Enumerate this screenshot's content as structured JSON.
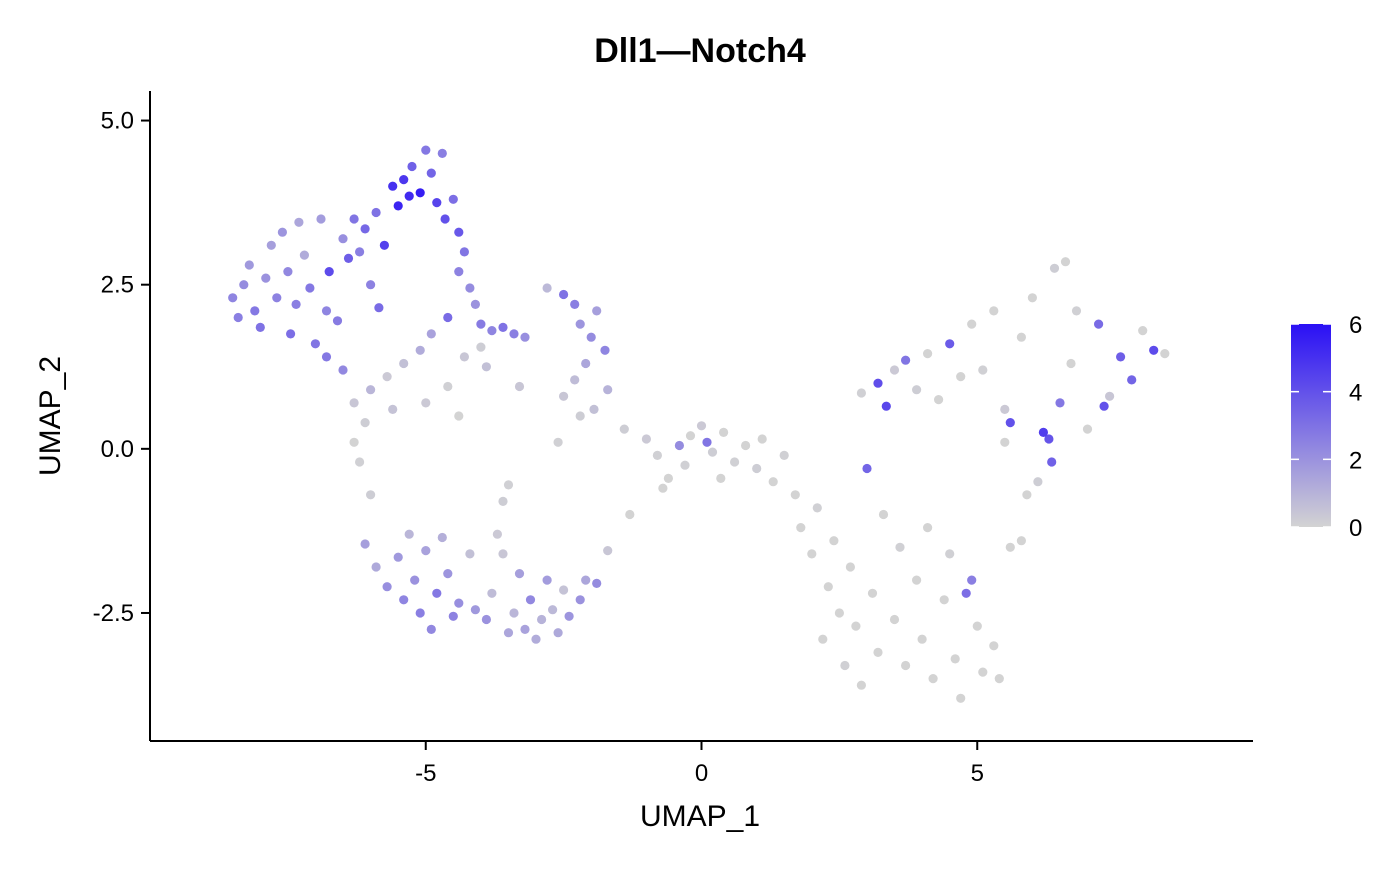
{
  "chart_data": {
    "type": "scatter",
    "title": "Dll1—Notch4",
    "xlabel": "UMAP_1",
    "ylabel": "UMAP_2",
    "xlim": [
      -10.0,
      10.0
    ],
    "ylim": [
      -4.45,
      5.45
    ],
    "x_ticks": [
      -5,
      0,
      5
    ],
    "x_tick_labels": [
      "-5",
      "0",
      "5"
    ],
    "y_ticks": [
      -2.5,
      0.0,
      2.5,
      5.0
    ],
    "y_tick_labels": [
      "-2.5",
      "0.0",
      "2.5",
      "5.0"
    ],
    "grid": false,
    "legend": {
      "position": "right",
      "type": "colorbar",
      "range": [
        0,
        6
      ],
      "ticks": [
        0,
        2,
        4,
        6
      ],
      "tick_labels": [
        "0",
        "2",
        "4",
        "6"
      ],
      "colors": {
        "low": "#d3d3d3",
        "high": "#2a10f5"
      }
    },
    "colors": {
      "axis": "#000000"
    },
    "points": [
      {
        "x": -8.5,
        "y": 2.3,
        "v": 2.4
      },
      {
        "x": -8.4,
        "y": 2.0,
        "v": 2.6
      },
      {
        "x": -8.3,
        "y": 2.5,
        "v": 2.2
      },
      {
        "x": -8.2,
        "y": 2.8,
        "v": 1.8
      },
      {
        "x": -8.1,
        "y": 2.1,
        "v": 2.8
      },
      {
        "x": -8.0,
        "y": 1.85,
        "v": 3.0
      },
      {
        "x": -7.9,
        "y": 2.6,
        "v": 2.0
      },
      {
        "x": -7.8,
        "y": 3.1,
        "v": 1.6
      },
      {
        "x": -7.7,
        "y": 2.3,
        "v": 2.5
      },
      {
        "x": -7.6,
        "y": 3.3,
        "v": 1.9
      },
      {
        "x": -7.5,
        "y": 2.7,
        "v": 2.3
      },
      {
        "x": -7.45,
        "y": 1.75,
        "v": 3.1
      },
      {
        "x": -7.35,
        "y": 2.2,
        "v": 2.6
      },
      {
        "x": -7.3,
        "y": 3.45,
        "v": 1.4
      },
      {
        "x": -7.2,
        "y": 2.95,
        "v": 1.2
      },
      {
        "x": -7.1,
        "y": 2.45,
        "v": 2.8
      },
      {
        "x": -7.0,
        "y": 1.6,
        "v": 2.9
      },
      {
        "x": -6.9,
        "y": 3.5,
        "v": 1.7
      },
      {
        "x": -6.8,
        "y": 2.1,
        "v": 2.4
      },
      {
        "x": -6.75,
        "y": 2.7,
        "v": 4.2
      },
      {
        "x": -6.6,
        "y": 1.95,
        "v": 2.7
      },
      {
        "x": -6.5,
        "y": 3.2,
        "v": 2.1
      },
      {
        "x": -6.4,
        "y": 2.9,
        "v": 3.6
      },
      {
        "x": -6.3,
        "y": 3.5,
        "v": 2.9
      },
      {
        "x": -6.2,
        "y": 3.0,
        "v": 2.6
      },
      {
        "x": -6.1,
        "y": 3.35,
        "v": 3.3
      },
      {
        "x": -6.0,
        "y": 2.5,
        "v": 2.5
      },
      {
        "x": -5.9,
        "y": 3.6,
        "v": 3.0
      },
      {
        "x": -5.85,
        "y": 2.15,
        "v": 3.2
      },
      {
        "x": -5.75,
        "y": 3.1,
        "v": 4.5
      },
      {
        "x": -5.6,
        "y": 4.0,
        "v": 5.0
      },
      {
        "x": -5.5,
        "y": 3.7,
        "v": 5.4
      },
      {
        "x": -5.4,
        "y": 4.1,
        "v": 4.8
      },
      {
        "x": -5.3,
        "y": 3.85,
        "v": 5.2
      },
      {
        "x": -5.25,
        "y": 4.3,
        "v": 3.5
      },
      {
        "x": -5.1,
        "y": 3.9,
        "v": 5.6
      },
      {
        "x": -5.0,
        "y": 4.55,
        "v": 2.8
      },
      {
        "x": -4.9,
        "y": 4.2,
        "v": 3.4
      },
      {
        "x": -4.8,
        "y": 3.75,
        "v": 4.4
      },
      {
        "x": -4.7,
        "y": 4.5,
        "v": 2.6
      },
      {
        "x": -4.65,
        "y": 3.5,
        "v": 4.0
      },
      {
        "x": -4.5,
        "y": 3.8,
        "v": 3.1
      },
      {
        "x": -4.4,
        "y": 3.3,
        "v": 3.8
      },
      {
        "x": -4.3,
        "y": 3.0,
        "v": 2.9
      },
      {
        "x": -4.4,
        "y": 2.7,
        "v": 2.5
      },
      {
        "x": -4.2,
        "y": 2.45,
        "v": 2.2
      },
      {
        "x": -4.1,
        "y": 2.2,
        "v": 2.0
      },
      {
        "x": -4.0,
        "y": 1.9,
        "v": 2.7
      },
      {
        "x": -3.8,
        "y": 1.8,
        "v": 2.4
      },
      {
        "x": -3.6,
        "y": 1.85,
        "v": 3.0
      },
      {
        "x": -3.4,
        "y": 1.75,
        "v": 2.6
      },
      {
        "x": -3.2,
        "y": 1.7,
        "v": 2.1
      },
      {
        "x": -4.6,
        "y": 2.0,
        "v": 3.2
      },
      {
        "x": -4.9,
        "y": 1.75,
        "v": 1.5
      },
      {
        "x": -5.1,
        "y": 1.5,
        "v": 1.2
      },
      {
        "x": -5.4,
        "y": 1.3,
        "v": 0.6
      },
      {
        "x": -5.7,
        "y": 1.1,
        "v": 0.3
      },
      {
        "x": -6.0,
        "y": 0.9,
        "v": 0.9
      },
      {
        "x": -6.3,
        "y": 0.7,
        "v": 0.4
      },
      {
        "x": -6.5,
        "y": 1.2,
        "v": 2.3
      },
      {
        "x": -6.8,
        "y": 1.4,
        "v": 2.8
      },
      {
        "x": -6.1,
        "y": 0.4,
        "v": 0.2
      },
      {
        "x": -5.6,
        "y": 0.6,
        "v": 0.5
      },
      {
        "x": -5.0,
        "y": 0.7,
        "v": 0.3
      },
      {
        "x": -4.6,
        "y": 0.95,
        "v": 0.1
      },
      {
        "x": -4.3,
        "y": 1.4,
        "v": 0.4
      },
      {
        "x": -4.0,
        "y": 1.55,
        "v": 0.2
      },
      {
        "x": -3.9,
        "y": 1.25,
        "v": 0.6
      },
      {
        "x": -4.4,
        "y": 0.5,
        "v": 0.0
      },
      {
        "x": -6.3,
        "y": 0.1,
        "v": 0.0
      },
      {
        "x": -6.2,
        "y": -0.2,
        "v": 0.1
      },
      {
        "x": -6.0,
        "y": -0.7,
        "v": 0.2
      },
      {
        "x": -3.3,
        "y": 0.95,
        "v": 0.4
      },
      {
        "x": -2.8,
        "y": 2.45,
        "v": 0.8
      },
      {
        "x": -2.5,
        "y": 2.35,
        "v": 3.0
      },
      {
        "x": -2.3,
        "y": 2.2,
        "v": 2.6
      },
      {
        "x": -2.2,
        "y": 1.9,
        "v": 1.9
      },
      {
        "x": -2.0,
        "y": 1.7,
        "v": 2.2
      },
      {
        "x": -1.9,
        "y": 2.1,
        "v": 1.6
      },
      {
        "x": -1.75,
        "y": 1.5,
        "v": 2.4
      },
      {
        "x": -2.1,
        "y": 1.3,
        "v": 1.4
      },
      {
        "x": -2.3,
        "y": 1.05,
        "v": 0.7
      },
      {
        "x": -2.5,
        "y": 0.8,
        "v": 0.4
      },
      {
        "x": -2.2,
        "y": 0.5,
        "v": 0.2
      },
      {
        "x": -1.95,
        "y": 0.6,
        "v": 0.6
      },
      {
        "x": -1.7,
        "y": 0.9,
        "v": 1.0
      },
      {
        "x": -2.6,
        "y": 0.1,
        "v": 0.1
      },
      {
        "x": -1.4,
        "y": 0.3,
        "v": 0.2
      },
      {
        "x": -1.0,
        "y": 0.15,
        "v": 0.3
      },
      {
        "x": -0.8,
        "y": -0.1,
        "v": 0.1
      },
      {
        "x": -0.6,
        "y": -0.45,
        "v": 0.0
      },
      {
        "x": -0.4,
        "y": 0.05,
        "v": 2.2
      },
      {
        "x": -0.2,
        "y": 0.2,
        "v": 0.0
      },
      {
        "x": 0.0,
        "y": 0.35,
        "v": 0.3
      },
      {
        "x": 0.1,
        "y": 0.1,
        "v": 2.9
      },
      {
        "x": 0.2,
        "y": -0.05,
        "v": 0.2
      },
      {
        "x": 0.4,
        "y": 0.25,
        "v": 0.0
      },
      {
        "x": 0.6,
        "y": -0.2,
        "v": 0.1
      },
      {
        "x": 0.8,
        "y": 0.05,
        "v": 0.0
      },
      {
        "x": 1.0,
        "y": -0.3,
        "v": 0.2
      },
      {
        "x": 1.1,
        "y": 0.15,
        "v": 0.0
      },
      {
        "x": 1.3,
        "y": -0.5,
        "v": 0.0
      },
      {
        "x": 1.5,
        "y": -0.1,
        "v": 0.1
      },
      {
        "x": 1.7,
        "y": -0.7,
        "v": 0.0
      },
      {
        "x": -1.3,
        "y": -1.0,
        "v": 0.0
      },
      {
        "x": -0.7,
        "y": -0.6,
        "v": 0.0
      },
      {
        "x": -0.3,
        "y": -0.25,
        "v": 0.1
      },
      {
        "x": 0.35,
        "y": -0.45,
        "v": 0.0
      },
      {
        "x": -6.1,
        "y": -1.45,
        "v": 1.6
      },
      {
        "x": -5.9,
        "y": -1.8,
        "v": 1.3
      },
      {
        "x": -5.7,
        "y": -2.1,
        "v": 2.1
      },
      {
        "x": -5.5,
        "y": -1.65,
        "v": 1.8
      },
      {
        "x": -5.4,
        "y": -2.3,
        "v": 2.4
      },
      {
        "x": -5.3,
        "y": -1.3,
        "v": 0.9
      },
      {
        "x": -5.2,
        "y": -2.0,
        "v": 2.0
      },
      {
        "x": -5.1,
        "y": -2.5,
        "v": 2.6
      },
      {
        "x": -5.0,
        "y": -1.55,
        "v": 1.5
      },
      {
        "x": -4.9,
        "y": -2.75,
        "v": 2.3
      },
      {
        "x": -4.8,
        "y": -2.2,
        "v": 2.8
      },
      {
        "x": -4.7,
        "y": -1.35,
        "v": 1.1
      },
      {
        "x": -4.6,
        "y": -1.9,
        "v": 1.9
      },
      {
        "x": -4.5,
        "y": -2.55,
        "v": 2.5
      },
      {
        "x": -4.4,
        "y": -2.35,
        "v": 2.1
      },
      {
        "x": -4.2,
        "y": -1.6,
        "v": 0.6
      },
      {
        "x": -4.1,
        "y": -2.45,
        "v": 1.8
      },
      {
        "x": -3.9,
        "y": -2.6,
        "v": 2.0
      },
      {
        "x": -3.8,
        "y": -2.2,
        "v": 0.7
      },
      {
        "x": -3.7,
        "y": -1.3,
        "v": 0.3
      },
      {
        "x": -3.6,
        "y": -1.6,
        "v": 0.4
      },
      {
        "x": -3.5,
        "y": -2.8,
        "v": 1.4
      },
      {
        "x": -3.4,
        "y": -2.5,
        "v": 0.9
      },
      {
        "x": -3.3,
        "y": -1.9,
        "v": 1.6
      },
      {
        "x": -3.2,
        "y": -2.75,
        "v": 1.5
      },
      {
        "x": -3.1,
        "y": -2.3,
        "v": 2.3
      },
      {
        "x": -3.0,
        "y": -2.9,
        "v": 1.2
      },
      {
        "x": -2.9,
        "y": -2.6,
        "v": 1.0
      },
      {
        "x": -2.8,
        "y": -2.0,
        "v": 1.7
      },
      {
        "x": -2.7,
        "y": -2.45,
        "v": 0.8
      },
      {
        "x": -2.6,
        "y": -2.8,
        "v": 1.3
      },
      {
        "x": -2.5,
        "y": -2.15,
        "v": 0.5
      },
      {
        "x": -2.4,
        "y": -2.55,
        "v": 1.9
      },
      {
        "x": -2.2,
        "y": -2.3,
        "v": 2.0
      },
      {
        "x": -2.1,
        "y": -2.0,
        "v": 1.4
      },
      {
        "x": -1.9,
        "y": -2.05,
        "v": 2.2
      },
      {
        "x": -1.7,
        "y": -1.55,
        "v": 0.4
      },
      {
        "x": -3.6,
        "y": -0.8,
        "v": 0.2
      },
      {
        "x": -3.5,
        "y": -0.55,
        "v": 0.1
      },
      {
        "x": 1.8,
        "y": -1.2,
        "v": 0.0
      },
      {
        "x": 2.0,
        "y": -1.6,
        "v": 0.0
      },
      {
        "x": 2.1,
        "y": -0.9,
        "v": 0.1
      },
      {
        "x": 2.3,
        "y": -2.1,
        "v": 0.0
      },
      {
        "x": 2.4,
        "y": -1.4,
        "v": 0.0
      },
      {
        "x": 2.2,
        "y": -2.9,
        "v": 0.0
      },
      {
        "x": 2.5,
        "y": -2.5,
        "v": 0.0
      },
      {
        "x": 2.6,
        "y": -3.3,
        "v": 0.1
      },
      {
        "x": 2.7,
        "y": -1.8,
        "v": 0.0
      },
      {
        "x": 2.8,
        "y": -2.7,
        "v": 0.0
      },
      {
        "x": 2.9,
        "y": -3.6,
        "v": 0.0
      },
      {
        "x": 3.0,
        "y": -0.3,
        "v": 3.4
      },
      {
        "x": 3.1,
        "y": -2.2,
        "v": 0.0
      },
      {
        "x": 3.2,
        "y": -3.1,
        "v": 0.0
      },
      {
        "x": 3.3,
        "y": -1.0,
        "v": 0.0
      },
      {
        "x": 3.5,
        "y": -2.6,
        "v": 0.0
      },
      {
        "x": 3.6,
        "y": -1.5,
        "v": 0.1
      },
      {
        "x": 3.7,
        "y": -3.3,
        "v": 0.0
      },
      {
        "x": 3.9,
        "y": -2.0,
        "v": 0.0
      },
      {
        "x": 4.0,
        "y": -2.9,
        "v": 0.0
      },
      {
        "x": 4.1,
        "y": -1.2,
        "v": 0.0
      },
      {
        "x": 4.2,
        "y": -3.5,
        "v": 0.0
      },
      {
        "x": 4.4,
        "y": -2.3,
        "v": 0.0
      },
      {
        "x": 4.5,
        "y": -1.6,
        "v": 0.1
      },
      {
        "x": 4.6,
        "y": -3.2,
        "v": 0.0
      },
      {
        "x": 4.7,
        "y": -3.8,
        "v": 0.0
      },
      {
        "x": 4.8,
        "y": -2.2,
        "v": 3.1
      },
      {
        "x": 4.9,
        "y": -2.0,
        "v": 2.6
      },
      {
        "x": 5.0,
        "y": -2.7,
        "v": 0.0
      },
      {
        "x": 5.1,
        "y": -3.4,
        "v": 0.0
      },
      {
        "x": 5.3,
        "y": -3.0,
        "v": 0.0
      },
      {
        "x": 5.4,
        "y": -3.5,
        "v": 0.0
      },
      {
        "x": 5.6,
        "y": -1.5,
        "v": 0.0
      },
      {
        "x": 5.8,
        "y": -1.4,
        "v": 0.0
      },
      {
        "x": 2.9,
        "y": 0.85,
        "v": 0.1
      },
      {
        "x": 3.2,
        "y": 1.0,
        "v": 4.1
      },
      {
        "x": 3.35,
        "y": 0.65,
        "v": 4.3
      },
      {
        "x": 3.5,
        "y": 1.2,
        "v": 0.3
      },
      {
        "x": 3.7,
        "y": 1.35,
        "v": 2.9
      },
      {
        "x": 3.9,
        "y": 0.9,
        "v": 0.2
      },
      {
        "x": 4.1,
        "y": 1.45,
        "v": 0.0
      },
      {
        "x": 4.3,
        "y": 0.75,
        "v": 0.0
      },
      {
        "x": 4.5,
        "y": 1.6,
        "v": 3.7
      },
      {
        "x": 4.7,
        "y": 1.1,
        "v": 0.0
      },
      {
        "x": 4.9,
        "y": 1.9,
        "v": 0.0
      },
      {
        "x": 5.1,
        "y": 1.2,
        "v": 0.1
      },
      {
        "x": 5.3,
        "y": 2.1,
        "v": 0.0
      },
      {
        "x": 5.5,
        "y": 0.6,
        "v": 0.3
      },
      {
        "x": 5.6,
        "y": 0.4,
        "v": 4.0
      },
      {
        "x": 5.8,
        "y": 1.7,
        "v": 0.0
      },
      {
        "x": 6.0,
        "y": 2.3,
        "v": 0.0
      },
      {
        "x": 6.2,
        "y": 0.25,
        "v": 4.6
      },
      {
        "x": 6.3,
        "y": 0.15,
        "v": 3.9
      },
      {
        "x": 6.4,
        "y": 2.75,
        "v": 0.2
      },
      {
        "x": 6.5,
        "y": 0.7,
        "v": 2.8
      },
      {
        "x": 6.6,
        "y": 2.85,
        "v": 0.0
      },
      {
        "x": 6.7,
        "y": 1.3,
        "v": 0.0
      },
      {
        "x": 6.8,
        "y": 2.1,
        "v": 0.1
      },
      {
        "x": 7.0,
        "y": 0.3,
        "v": 0.0
      },
      {
        "x": 7.2,
        "y": 1.9,
        "v": 3.2
      },
      {
        "x": 7.4,
        "y": 0.8,
        "v": 0.4
      },
      {
        "x": 7.6,
        "y": 1.4,
        "v": 3.6
      },
      {
        "x": 7.8,
        "y": 1.05,
        "v": 3.4
      },
      {
        "x": 8.0,
        "y": 1.8,
        "v": 0.0
      },
      {
        "x": 8.2,
        "y": 1.5,
        "v": 4.2
      },
      {
        "x": 8.4,
        "y": 1.45,
        "v": 0.0
      },
      {
        "x": 7.3,
        "y": 0.65,
        "v": 4.0
      },
      {
        "x": 6.35,
        "y": -0.2,
        "v": 3.5
      },
      {
        "x": 6.1,
        "y": -0.5,
        "v": 0.2
      },
      {
        "x": 5.9,
        "y": -0.7,
        "v": 0.0
      },
      {
        "x": 5.5,
        "y": 0.1,
        "v": 0.0
      }
    ]
  }
}
